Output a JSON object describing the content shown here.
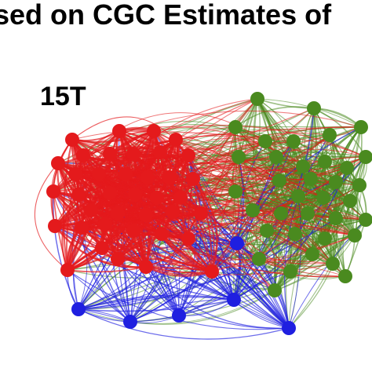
{
  "title": "sed on CGC Estimates of",
  "panel_label": "15T",
  "colors": {
    "red_module": "#e41a1c",
    "green_module": "#4a8a1f",
    "blue_module": "#1f1fe0",
    "background": "#ffffff"
  }
}
